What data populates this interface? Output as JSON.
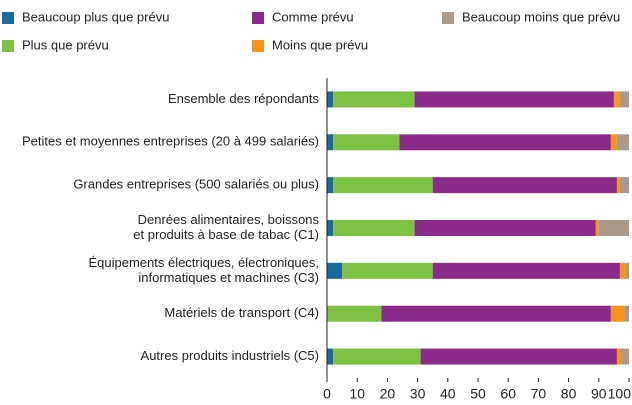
{
  "chart_data": {
    "type": "stacked-barh",
    "categories": [
      [
        "Ensemble des répondants"
      ],
      [
        "Petites et moyennes entreprises (20 à 499 salariés)"
      ],
      [
        "Grandes entreprises (500 salariés ou plus)"
      ],
      [
        "Denrées alimentaires, boissons",
        "et produits à base de tabac (C1)"
      ],
      [
        "Équipements électriques, électroniques,",
        "informatiques et machines (C3)"
      ],
      [
        "Matériels de transport (C4)"
      ],
      [
        "Autres produits industriels (C5)"
      ]
    ],
    "series": [
      {
        "name": "Beaucoup plus que prévu",
        "color": "#1b6a9c",
        "values": [
          2,
          2,
          2,
          2,
          5,
          0,
          2
        ]
      },
      {
        "name": "Plus que prévu",
        "color": "#7dc242",
        "values": [
          27,
          22,
          33,
          27,
          30,
          18,
          29
        ]
      },
      {
        "name": "Comme prévu",
        "color": "#8c2a8c",
        "values": [
          66,
          70,
          61,
          60,
          62,
          76,
          65
        ]
      },
      {
        "name": "Moins que prévu",
        "color": "#f7941d",
        "values": [
          2,
          2,
          1,
          1,
          2,
          4.5,
          1.5
        ]
      },
      {
        "name": "Beaucoup moins que prévu",
        "color": "#a8998a",
        "values": [
          3,
          4,
          3,
          10,
          1,
          1.5,
          2.5
        ]
      }
    ],
    "xlim": [
      0,
      100
    ],
    "xticks": [
      0,
      10,
      20,
      30,
      40,
      50,
      60,
      70,
      80,
      90,
      100
    ]
  }
}
